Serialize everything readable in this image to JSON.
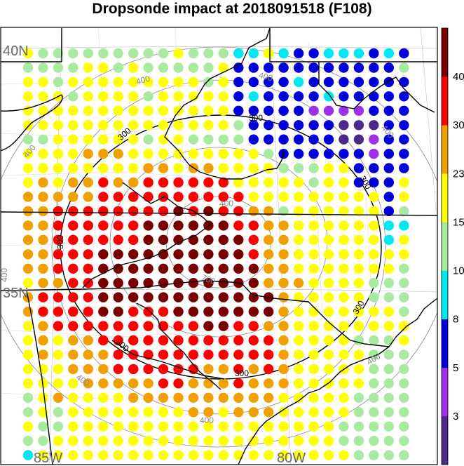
{
  "title": "Dropsonde impact at 2018091518 (F108)",
  "lat_labels": [
    "40N",
    "35N"
  ],
  "lon_labels": [
    "85W",
    "80W"
  ],
  "contour_labels": {
    "black": "300",
    "gray_outer": "400",
    "gray_inner": "400",
    "gray_innermost": "700"
  },
  "colorbar": {
    "labels": [
      "40",
      "30",
      "23",
      "15",
      "10",
      "8",
      "5",
      "3"
    ],
    "colors": [
      "#4b2a8a",
      "#a030e8",
      "#0000d8",
      "#00e8f0",
      "#a8eba0",
      "#ffff00",
      "#f0a000",
      "#ff0000",
      "#7a0000"
    ]
  },
  "impact_grid": {
    "palette": {
      "P": "#4b2a8a",
      "V": "#a030e8",
      "B": "#0000d8",
      "C": "#00e8f0",
      "G": "#a8eba0",
      "Y": "#ffff00",
      "O": "#f0a000",
      "R": "#ff0000",
      "M": "#7a0000"
    },
    "rows": [
      "YGGGGGGGGGYGGGCCYCBBCCCBCB",
      "GGGGYYGYGGGGGYBBBBBBBBBBBG",
      "YYGYYYYYYYYYGYBBBBCBBBBBBB",
      "YYYGYYYYGYYYYYBCBBBBCBBBBB",
      "YYYYYYYYYYYYYYBBBBBVVVVBBB",
      "YYYYYYYYYYYYYYGBBBBBBPPPBB",
      "GGYYYYYYGYYGGGGBBBBBBPPVBB",
      "YYYYOOOYYYYYYYYYGBBBBBBVBB",
      "YYYYYYYYOOYOOYYYYGGGYYBBBB",
      "YOYOOROORRRRRRYYYYYGYYBBBY",
      "OOOOORRRRRRRRRRYYYYYYYYYBY",
      "OORRRRRRRRMRMRROOGYYYYYYBG",
      "OORRRRRRMMMMMMRROOYYYYYYCC",
      "OORRRRRRMMMMMMMROOYYYYYYCY",
      "OORRRMMMMMMMMMMROOYYYYYYYY",
      "OORRRMMMMMMMMMMMOOYYYYYYYG",
      "YOORRMMMMMMMMMMMOOOYYYYGGG",
      "ORRRRMMMMMMMMMMMMOYYYYYGGG",
      "ORRRRMMRRRMMMMMMMOYYYYYYYG",
      "YORRRRRRRRRRMMRROOYYYYYYYY",
      "YOYOORRRRRRRRRRRROYYYYGGGY",
      "YOYOOORRRRRRRRRRROYYYYYGGG",
      "YYYOOORRRRRROOROROYYYYYGGG",
      "YYYYOOOOORROOOROOOYYYYYGGG",
      "GYOYYYYOOOOOOOOOOYYYYYGGGG",
      "GYGYYYYYYYYOOYOOOYYYYYGGGG",
      "YGGYYYYYYYYYYYYYYYYYYGGGGG",
      "GGYYYYYYYYYYYYYYYYYYYGGGGG",
      "CYYYYYYYYYYYYYYYYYYYYYGGGG"
    ]
  }
}
